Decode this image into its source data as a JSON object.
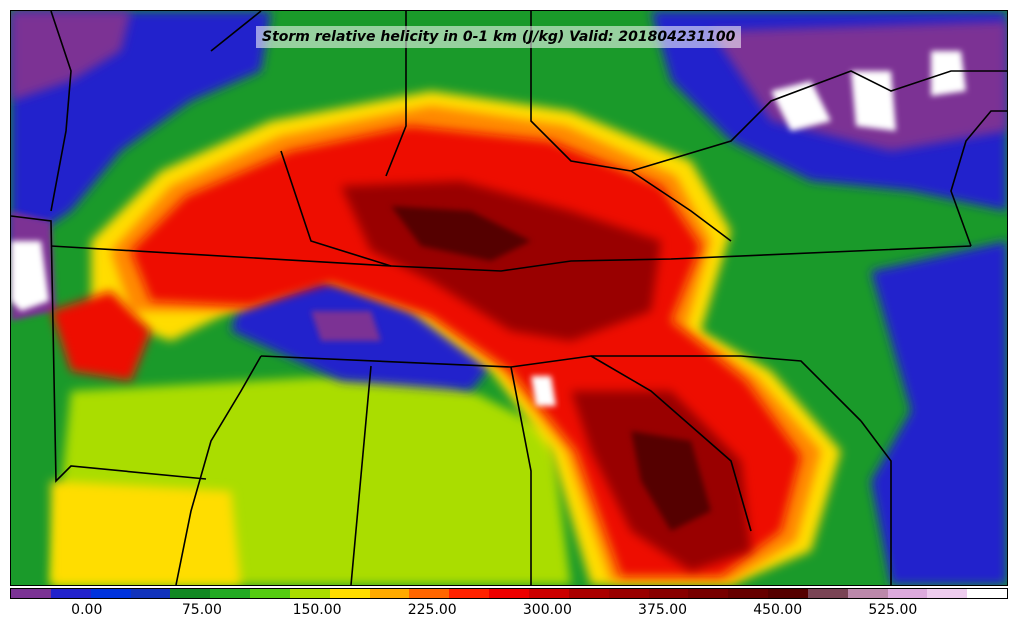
{
  "map": {
    "title": "Storm relative helicity in 0-1 km (J/kg) Valid: 201804231100",
    "colors": {
      "state_borders": "#000000",
      "missing": "#ffffff"
    }
  },
  "colorbar": {
    "vmin": -50,
    "vmax": 600,
    "colors": [
      "#7b3294",
      "#2222cc",
      "#0033dd",
      "#1133bb",
      "#118822",
      "#22aa22",
      "#55cc11",
      "#aadd00",
      "#ffdd00",
      "#ffaa00",
      "#ff6600",
      "#ff2200",
      "#ee0000",
      "#cc0000",
      "#aa0000",
      "#990000",
      "#880000",
      "#770000",
      "#660000",
      "#550000",
      "#7a4455",
      "#bb88aa",
      "#ddaadd",
      "#eeccee",
      "#ffffff"
    ],
    "ticks": [
      {
        "value": 0,
        "label": "0.00"
      },
      {
        "value": 75,
        "label": "75.00"
      },
      {
        "value": 150,
        "label": "150.00"
      },
      {
        "value": 225,
        "label": "225.00"
      },
      {
        "value": 300,
        "label": "300.00"
      },
      {
        "value": 375,
        "label": "375.00"
      },
      {
        "value": 450,
        "label": "450.00"
      },
      {
        "value": 525,
        "label": "525.00"
      }
    ]
  }
}
